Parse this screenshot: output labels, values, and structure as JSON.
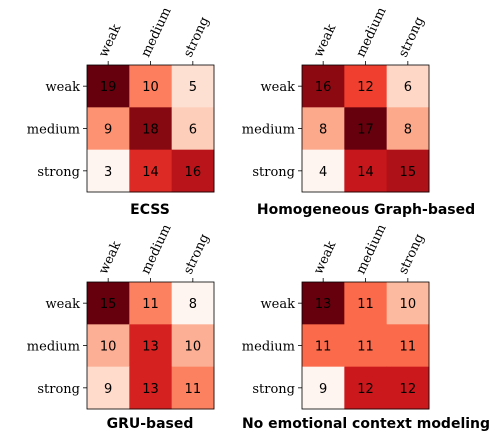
{
  "chart_data": [
    {
      "type": "heatmap",
      "title": "ECSS",
      "row_labels": [
        "weak",
        "medium",
        "strong"
      ],
      "col_labels": [
        "weak",
        "medium",
        "strong"
      ],
      "values": [
        [
          19,
          10,
          5
        ],
        [
          9,
          18,
          6
        ],
        [
          3,
          14,
          16
        ]
      ],
      "colormap": "Reds",
      "value_range": [
        3,
        19
      ]
    },
    {
      "type": "heatmap",
      "title": "Homogeneous Graph-based",
      "row_labels": [
        "weak",
        "medium",
        "strong"
      ],
      "col_labels": [
        "weak",
        "medium",
        "strong"
      ],
      "values": [
        [
          16,
          12,
          6
        ],
        [
          8,
          17,
          8
        ],
        [
          4,
          14,
          15
        ]
      ],
      "colormap": "Reds",
      "value_range": [
        4,
        17
      ]
    },
    {
      "type": "heatmap",
      "title": "GRU-based",
      "row_labels": [
        "weak",
        "medium",
        "strong"
      ],
      "col_labels": [
        "weak",
        "medium",
        "strong"
      ],
      "values": [
        [
          15,
          11,
          8
        ],
        [
          10,
          13,
          10
        ],
        [
          9,
          13,
          11
        ]
      ],
      "colormap": "Reds",
      "value_range": [
        8,
        15
      ]
    },
    {
      "type": "heatmap",
      "title": "No emotional context modeling",
      "row_labels": [
        "weak",
        "medium",
        "strong"
      ],
      "col_labels": [
        "weak",
        "medium",
        "strong"
      ],
      "values": [
        [
          13,
          11,
          10
        ],
        [
          11,
          11,
          11
        ],
        [
          9,
          12,
          12
        ]
      ],
      "colormap": "Reds",
      "value_range": [
        9,
        13
      ]
    }
  ]
}
